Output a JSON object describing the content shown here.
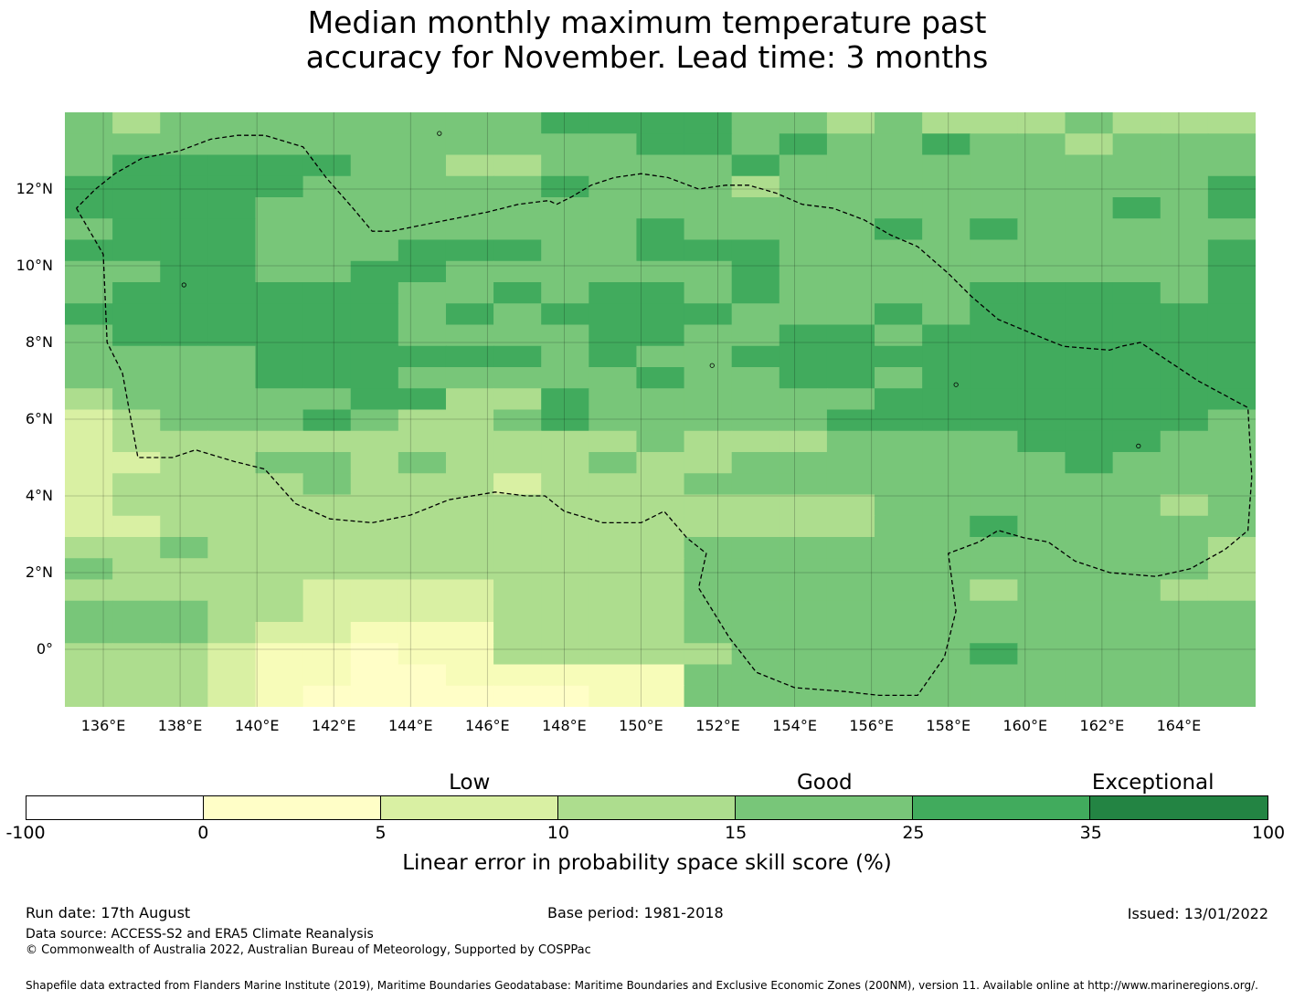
{
  "title_lines": [
    "Median monthly maximum temperature past",
    "accuracy for November. Lead time: 3 months"
  ],
  "map": {
    "lon_range": [
      135,
      166
    ],
    "lat_range": [
      -1.5,
      14
    ],
    "lat_ticks": [
      {
        "value": 12,
        "label": "12°N"
      },
      {
        "value": 10,
        "label": "10°N"
      },
      {
        "value": 8,
        "label": "8°N"
      },
      {
        "value": 6,
        "label": "6°N"
      },
      {
        "value": 4,
        "label": "4°N"
      },
      {
        "value": 2,
        "label": "2°N"
      },
      {
        "value": 0,
        "label": "0°"
      }
    ],
    "lon_ticks": [
      {
        "value": 136,
        "label": "136°E"
      },
      {
        "value": 138,
        "label": "138°E"
      },
      {
        "value": 140,
        "label": "140°E"
      },
      {
        "value": 142,
        "label": "142°E"
      },
      {
        "value": 144,
        "label": "144°E"
      },
      {
        "value": 146,
        "label": "146°E"
      },
      {
        "value": 148,
        "label": "148°E"
      },
      {
        "value": 150,
        "label": "150°E"
      },
      {
        "value": 152,
        "label": "152°E"
      },
      {
        "value": 154,
        "label": "154°E"
      },
      {
        "value": 156,
        "label": "156°E"
      },
      {
        "value": 158,
        "label": "158°E"
      },
      {
        "value": 160,
        "label": "160°E"
      },
      {
        "value": 162,
        "label": "162°E"
      },
      {
        "value": 164,
        "label": "164°E"
      }
    ],
    "grid_rows": [
      "6566666666777766565556555",
      "6666666666667767667665666",
      "6777776655666676666666666",
      "7777766666766656666666667",
      "7777666666666666666666767",
      "6777666666667666676766666",
      "7777666777667776666666667",
      "6677667766666676666666667",
      "6777777667677676666777767",
      "7777777676777766676777777",
      "6777777666677667767777777",
      "6666777777676677777777777",
      "6666777666667667767777777",
      "5666667755766666677777777",
      "4566676556766666777777776",
      "4555555555556555666677766",
      "4455665655565566666667666",
      "4555565554555666666666666",
      "4555555555555555566666656",
      "4455555555555555566766666",
      "5565555555555666666666665",
      "6555555555555666666666665",
      "5555544445555666666566655",
      "6665544445555666666666666",
      "6665443335555666666666666",
      "5554332335555566666766666",
      "5554332233333666666666666",
      "5554322222233666666666666"
    ],
    "palette": {
      "1": "#ffffff",
      "2": "#fffec7",
      "3": "#f7fcb9",
      "4": "#d9f0a3",
      "5": "#addd8e",
      "6": "#78c679",
      "7": "#41ab5d",
      "8": "#238443"
    },
    "eez_boundary": [
      [
        135.3,
        11.5
      ],
      [
        136.0,
        10.3
      ],
      [
        136.1,
        8.0
      ],
      [
        136.5,
        7.2
      ],
      [
        136.9,
        5.0
      ],
      [
        137.8,
        5.0
      ],
      [
        138.4,
        5.2
      ],
      [
        139.4,
        4.9
      ],
      [
        140.2,
        4.7
      ],
      [
        141.0,
        3.8
      ],
      [
        141.9,
        3.4
      ],
      [
        143.0,
        3.3
      ],
      [
        144.0,
        3.5
      ],
      [
        145.0,
        3.9
      ],
      [
        146.2,
        4.1
      ],
      [
        147.0,
        4.0
      ],
      [
        147.5,
        4.0
      ],
      [
        148.0,
        3.6
      ],
      [
        149.0,
        3.3
      ],
      [
        150.0,
        3.3
      ],
      [
        150.6,
        3.6
      ],
      [
        151.2,
        2.9
      ],
      [
        151.7,
        2.5
      ],
      [
        151.5,
        1.6
      ],
      [
        152.3,
        0.3
      ],
      [
        153.0,
        -0.6
      ],
      [
        154.0,
        -1.0
      ],
      [
        155.3,
        -1.1
      ],
      [
        156.2,
        -1.2
      ],
      [
        157.2,
        -1.2
      ],
      [
        157.9,
        -0.2
      ],
      [
        158.2,
        1.0
      ],
      [
        158.0,
        2.5
      ],
      [
        158.8,
        2.8
      ],
      [
        159.3,
        3.1
      ],
      [
        160.0,
        2.9
      ],
      [
        160.6,
        2.8
      ],
      [
        161.3,
        2.3
      ],
      [
        162.2,
        2.0
      ],
      [
        163.4,
        1.9
      ],
      [
        164.3,
        2.1
      ],
      [
        165.2,
        2.6
      ],
      [
        165.8,
        3.1
      ],
      [
        165.9,
        4.5
      ],
      [
        165.8,
        6.3
      ],
      [
        164.5,
        7.0
      ],
      [
        163.0,
        8.0
      ],
      [
        162.5,
        7.9
      ],
      [
        162.2,
        7.8
      ],
      [
        161.0,
        7.9
      ],
      [
        160.5,
        8.1
      ],
      [
        159.3,
        8.6
      ],
      [
        158.6,
        9.2
      ],
      [
        158.0,
        9.8
      ],
      [
        157.2,
        10.5
      ],
      [
        156.5,
        10.8
      ],
      [
        155.8,
        11.2
      ],
      [
        155.0,
        11.5
      ],
      [
        154.2,
        11.6
      ],
      [
        153.5,
        11.9
      ],
      [
        152.8,
        12.1
      ],
      [
        152.2,
        12.1
      ],
      [
        151.5,
        12.0
      ],
      [
        150.7,
        12.3
      ],
      [
        150.0,
        12.4
      ],
      [
        149.3,
        12.3
      ],
      [
        148.7,
        12.1
      ],
      [
        148.2,
        11.8
      ],
      [
        147.8,
        11.6
      ],
      [
        147.6,
        11.7
      ],
      [
        146.8,
        11.6
      ],
      [
        146.0,
        11.4
      ],
      [
        145.0,
        11.2
      ],
      [
        144.0,
        11.0
      ],
      [
        143.5,
        10.9
      ],
      [
        143.0,
        10.9
      ],
      [
        142.5,
        11.5
      ],
      [
        141.8,
        12.3
      ],
      [
        141.2,
        13.1
      ],
      [
        140.2,
        13.4
      ],
      [
        139.5,
        13.4
      ],
      [
        138.8,
        13.3
      ],
      [
        138.0,
        13.0
      ],
      [
        137.0,
        12.8
      ],
      [
        136.3,
        12.4
      ],
      [
        135.8,
        12.0
      ],
      [
        135.5,
        11.7
      ],
      [
        135.3,
        11.5
      ]
    ]
  },
  "legend": {
    "categories": [
      {
        "label": "Low",
        "at": 2.5
      },
      {
        "label": "Good",
        "at": 4.5
      },
      {
        "label": "Exceptional",
        "at": 6.35
      }
    ],
    "tick_labels": [
      "-100",
      "0",
      "5",
      "10",
      "15",
      "25",
      "35",
      "100"
    ],
    "segment_colors": [
      "#ffffff",
      "#fffec7",
      "#d9f0a3",
      "#addd8e",
      "#78c679",
      "#41ab5d",
      "#238443"
    ],
    "title": "Linear error in probability space skill score (%)"
  },
  "footer": {
    "run_date": "Run date: 17th August",
    "base_period": "Base period: 1981-2018",
    "issued": "Issued: 13/01/2022",
    "data_source": "Data source: ACCESS-S2 and ERA5 Climate Reanalysis",
    "copyright": "© Commonwealth of Australia 2022, Australian Bureau of Meteorology, Supported by COSPPac",
    "shapefile": "Shapefile data extracted from Flanders Marine Institute (2019), Maritime Boundaries Geodatabase: Maritime Boundaries and Exclusive Economic Zones (200NM), version 11. Available online at http://www.marineregions.org/."
  }
}
